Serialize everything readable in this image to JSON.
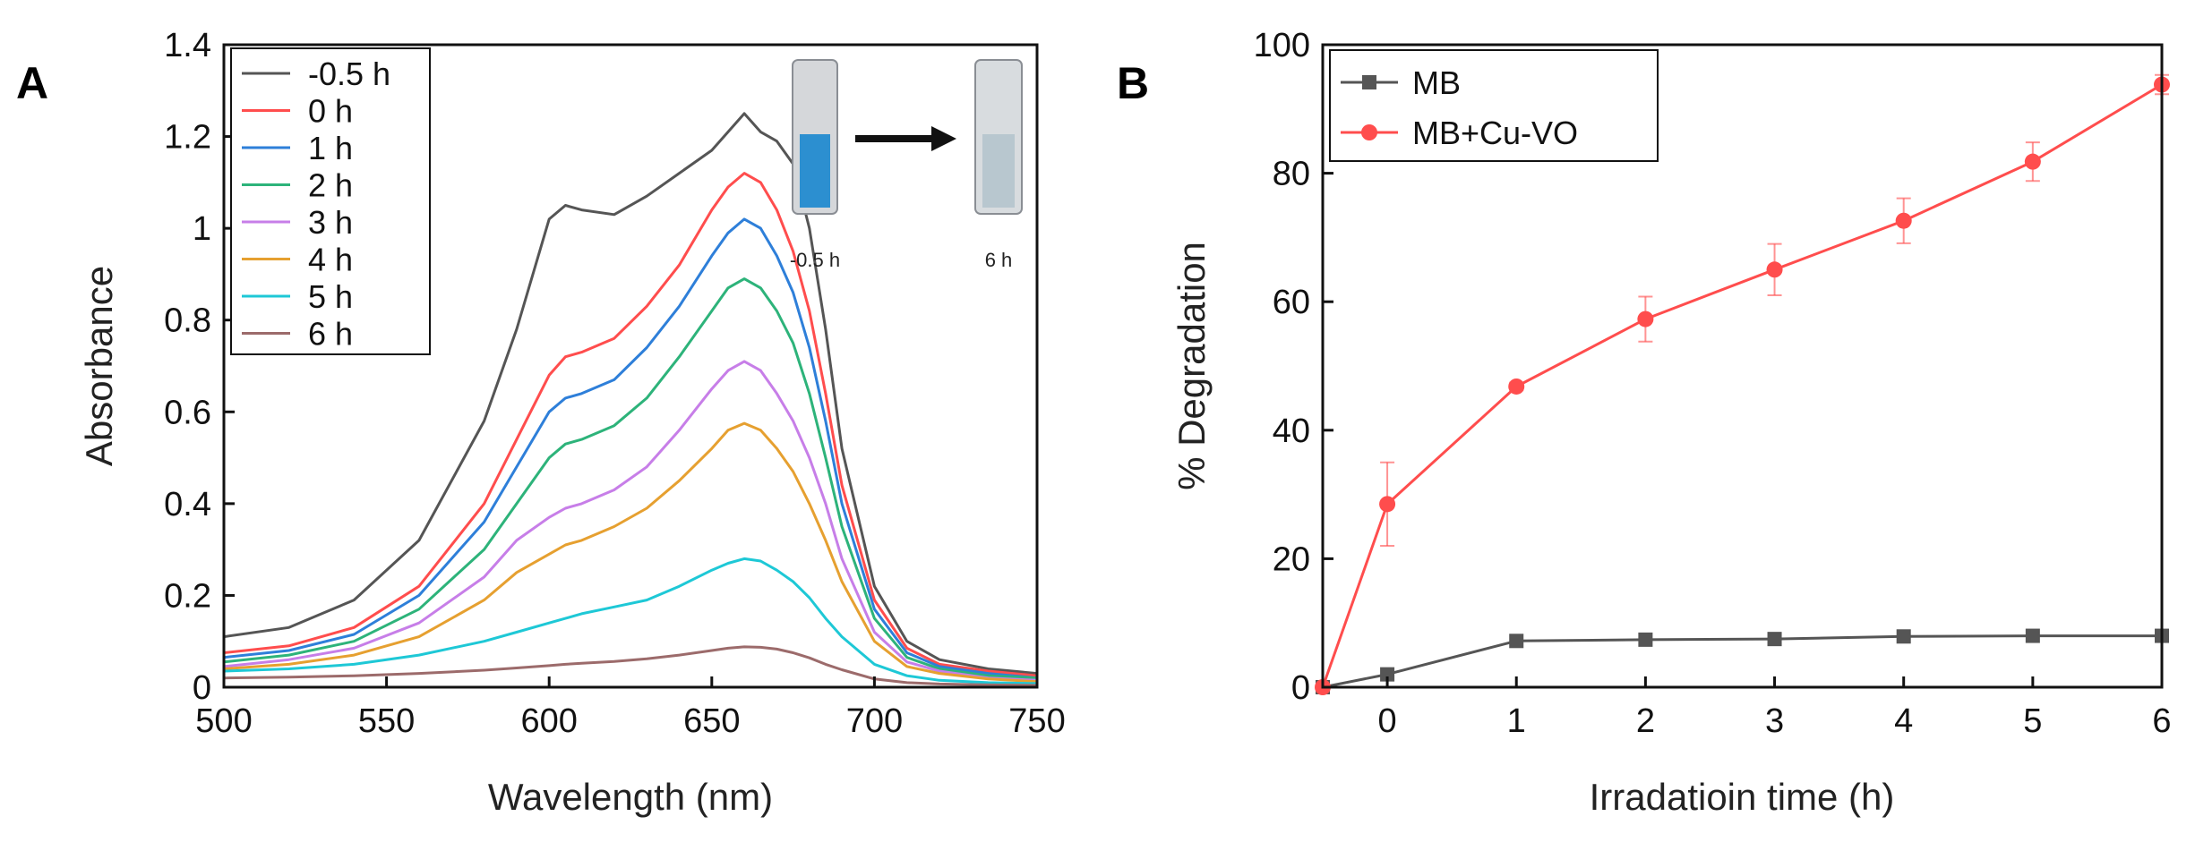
{
  "chart_data": [
    {
      "panel": "A",
      "type": "line",
      "title": "",
      "xlabel": "Wavelength (nm)",
      "ylabel": "Absorbance",
      "xlim": [
        500,
        750
      ],
      "ylim": [
        0,
        1.4
      ],
      "xticks": [
        "500",
        "550",
        "600",
        "650",
        "700",
        "750"
      ],
      "yticks": [
        "0",
        "0.2",
        "0.4",
        "0.6",
        "0.8",
        "1",
        "1.2",
        "1.4"
      ],
      "x": [
        500,
        520,
        540,
        560,
        580,
        590,
        600,
        605,
        610,
        620,
        630,
        640,
        650,
        655,
        660,
        665,
        670,
        675,
        680,
        685,
        690,
        700,
        710,
        720,
        735,
        750
      ],
      "series": [
        {
          "name": "-0.5 h",
          "color": "#555555",
          "values": [
            0.11,
            0.13,
            0.19,
            0.32,
            0.58,
            0.78,
            1.02,
            1.05,
            1.04,
            1.03,
            1.07,
            1.12,
            1.17,
            1.21,
            1.25,
            1.21,
            1.19,
            1.14,
            1.0,
            0.78,
            0.52,
            0.22,
            0.1,
            0.06,
            0.04,
            0.03
          ]
        },
        {
          "name": "0 h",
          "color": "#ff4d4d",
          "values": [
            0.075,
            0.09,
            0.13,
            0.22,
            0.4,
            0.54,
            0.68,
            0.72,
            0.73,
            0.76,
            0.83,
            0.92,
            1.04,
            1.09,
            1.12,
            1.1,
            1.04,
            0.95,
            0.82,
            0.64,
            0.44,
            0.19,
            0.085,
            0.05,
            0.035,
            0.025
          ]
        },
        {
          "name": "1 h",
          "color": "#2e7fd9",
          "values": [
            0.065,
            0.08,
            0.115,
            0.2,
            0.36,
            0.48,
            0.6,
            0.63,
            0.64,
            0.67,
            0.74,
            0.83,
            0.94,
            0.99,
            1.02,
            1.0,
            0.94,
            0.86,
            0.74,
            0.58,
            0.4,
            0.17,
            0.075,
            0.045,
            0.03,
            0.02
          ]
        },
        {
          "name": "2 h",
          "color": "#2db37a",
          "values": [
            0.055,
            0.07,
            0.1,
            0.17,
            0.3,
            0.4,
            0.5,
            0.53,
            0.54,
            0.57,
            0.63,
            0.72,
            0.82,
            0.87,
            0.89,
            0.87,
            0.82,
            0.75,
            0.64,
            0.5,
            0.35,
            0.15,
            0.065,
            0.04,
            0.025,
            0.02
          ]
        },
        {
          "name": "3 h",
          "color": "#c77ee8",
          "values": [
            0.045,
            0.06,
            0.085,
            0.14,
            0.24,
            0.32,
            0.37,
            0.39,
            0.4,
            0.43,
            0.48,
            0.56,
            0.65,
            0.69,
            0.71,
            0.69,
            0.64,
            0.58,
            0.5,
            0.4,
            0.28,
            0.12,
            0.055,
            0.035,
            0.02,
            0.015
          ]
        },
        {
          "name": "4 h",
          "color": "#e6a030",
          "values": [
            0.04,
            0.05,
            0.07,
            0.11,
            0.19,
            0.25,
            0.29,
            0.31,
            0.32,
            0.35,
            0.39,
            0.45,
            0.52,
            0.56,
            0.575,
            0.56,
            0.52,
            0.47,
            0.4,
            0.32,
            0.23,
            0.1,
            0.045,
            0.03,
            0.018,
            0.012
          ]
        },
        {
          "name": "5 h",
          "color": "#1ec8d6",
          "values": [
            0.035,
            0.04,
            0.05,
            0.07,
            0.1,
            0.12,
            0.14,
            0.15,
            0.16,
            0.175,
            0.19,
            0.22,
            0.255,
            0.27,
            0.28,
            0.275,
            0.255,
            0.23,
            0.195,
            0.15,
            0.11,
            0.05,
            0.025,
            0.015,
            0.01,
            0.008
          ]
        },
        {
          "name": "6 h",
          "color": "#9c6b6b",
          "values": [
            0.02,
            0.022,
            0.025,
            0.03,
            0.037,
            0.042,
            0.047,
            0.05,
            0.052,
            0.056,
            0.062,
            0.07,
            0.08,
            0.085,
            0.088,
            0.087,
            0.083,
            0.075,
            0.064,
            0.05,
            0.038,
            0.018,
            0.01,
            0.007,
            0.005,
            0.004
          ]
        }
      ],
      "inset_labels": [
        "-0.5 h",
        "6 h"
      ],
      "legend": "top-left"
    },
    {
      "panel": "B",
      "type": "line",
      "title": "",
      "xlabel": "Irradatioin time (h)",
      "ylabel": "% Degradation",
      "xlim": [
        -0.5,
        6
      ],
      "ylim": [
        0,
        100
      ],
      "xticks": [
        "0",
        "1",
        "2",
        "3",
        "4",
        "5",
        "6"
      ],
      "yticks": [
        "0",
        "20",
        "40",
        "60",
        "80",
        "100"
      ],
      "x": [
        -0.5,
        0,
        1,
        2,
        3,
        4,
        5,
        6
      ],
      "series": [
        {
          "name": "MB",
          "color": "#555555",
          "marker": "square",
          "values": [
            0,
            2,
            7.2,
            7.4,
            7.5,
            7.9,
            8.0,
            8.0
          ],
          "errors": [
            0,
            0,
            0,
            0,
            0,
            0,
            0,
            0
          ]
        },
        {
          "name": "MB+Cu-VO",
          "color": "#ff4d4d",
          "marker": "circle",
          "values": [
            0,
            28.5,
            46.8,
            57.3,
            65.0,
            72.6,
            81.8,
            93.8
          ],
          "errors": [
            0,
            6.5,
            0.6,
            3.5,
            4.0,
            3.5,
            3.0,
            1.5
          ]
        }
      ],
      "legend": "top-left"
    }
  ],
  "panel_labels": [
    "A",
    "B"
  ]
}
